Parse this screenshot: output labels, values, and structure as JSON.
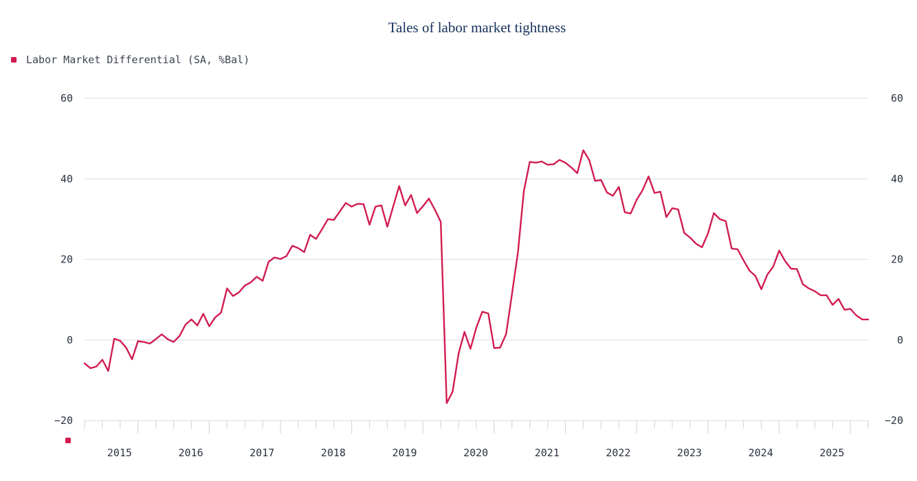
{
  "chart_data": {
    "type": "line",
    "title": "Tales of labor market tightness",
    "xlabel": "",
    "ylabel": "",
    "ylim": [
      -20,
      60
    ],
    "yticks": [
      "60",
      "40",
      "20",
      "0",
      "−20"
    ],
    "ytick_values": [
      60,
      40,
      20,
      0,
      -20
    ],
    "xticks": [
      "2015",
      "2016",
      "2017",
      "2018",
      "2019",
      "2020",
      "2021",
      "2022",
      "2023",
      "2024",
      "2025"
    ],
    "grid": true,
    "legend_position": "top-left",
    "x_start": "2014-10",
    "x_frequency": "monthly",
    "series": [
      {
        "name": "Labor Market Differential (SA, %Bal)",
        "color": "#d11c50",
        "values": [
          -5.8,
          -7.0,
          -6.6,
          -4.9,
          -7.7,
          0.3,
          -0.2,
          -1.9,
          -4.8,
          -0.3,
          -0.5,
          -0.9,
          0.2,
          1.4,
          0.2,
          -0.5,
          1.0,
          3.8,
          5.1,
          3.6,
          6.5,
          3.4,
          5.6,
          6.8,
          12.8,
          10.9,
          11.8,
          13.5,
          14.3,
          15.7,
          14.7,
          19.4,
          20.5,
          20.1,
          20.8,
          23.4,
          22.8,
          21.8,
          26.1,
          25.1,
          27.5,
          30.0,
          29.8,
          31.9,
          34.0,
          33.1,
          33.8,
          33.7,
          28.6,
          33.1,
          33.4,
          28.1,
          33.2,
          38.2,
          33.4,
          36.0,
          31.5,
          33.2,
          35.1,
          32.4,
          29.3,
          -15.7,
          -12.8,
          -3.4,
          2.0,
          -2.2,
          3.1,
          7.0,
          6.6,
          -2.0,
          -1.9,
          1.4,
          11.4,
          21.8,
          37.0,
          44.2,
          44.0,
          44.3,
          43.5,
          43.6,
          44.7,
          44.0,
          42.8,
          41.4,
          47.1,
          44.7,
          39.5,
          39.7,
          36.6,
          35.8,
          38.0,
          31.7,
          31.4,
          34.8,
          37.2,
          40.6,
          36.5,
          36.8,
          30.5,
          32.7,
          32.4,
          26.6,
          25.4,
          23.9,
          23.0,
          26.4,
          31.5,
          30.0,
          29.5,
          22.7,
          22.5,
          19.8,
          17.2,
          15.9,
          12.6,
          16.2,
          18.2,
          22.2,
          19.6,
          17.7,
          17.6,
          13.8,
          12.8,
          12.1,
          11.1,
          11.1,
          8.7,
          10.2,
          7.5,
          7.7,
          6.1,
          5.1,
          5.1
        ]
      }
    ]
  }
}
